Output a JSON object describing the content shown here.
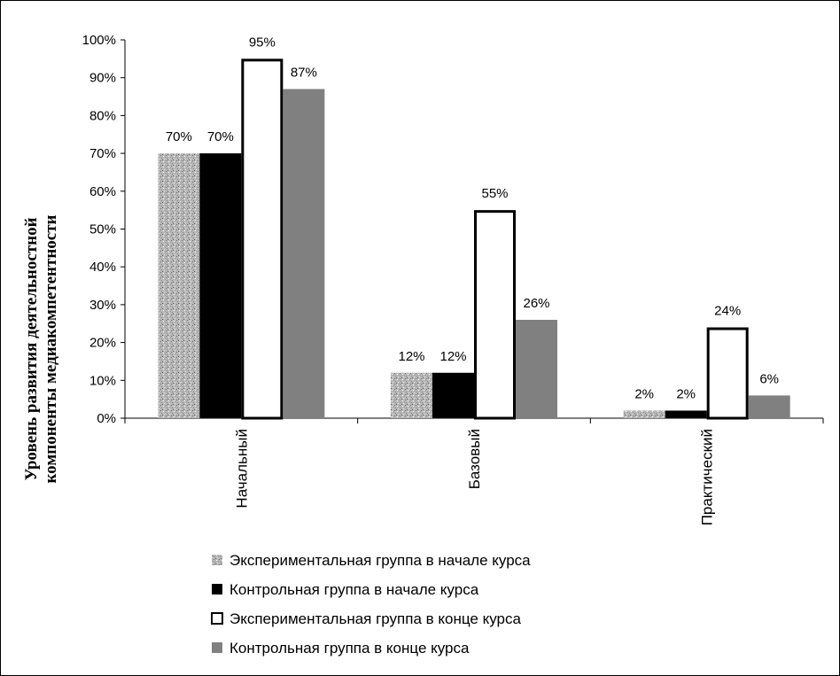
{
  "chart_data": {
    "type": "bar",
    "ylabel_lines": [
      "Уровень развития деятельностной",
      "компоненты медиакомпетентности"
    ],
    "xlabel": "",
    "ylim": [
      0,
      100
    ],
    "y_ticks": [
      "0%",
      "10%",
      "20%",
      "30%",
      "40%",
      "50%",
      "60%",
      "70%",
      "80%",
      "90%",
      "100%"
    ],
    "grid": false,
    "legend_position": "bottom",
    "categories": [
      "Начальный",
      "Базовый",
      "Практический"
    ],
    "series": [
      {
        "name": "Экспериментальная  группа в начале курса",
        "values": [
          70,
          12,
          2
        ],
        "labels": [
          "70%",
          "12%",
          "2%"
        ],
        "style": "speckled",
        "color": "#a9a9a9"
      },
      {
        "name": "Контрольная группа в начале курса",
        "values": [
          70,
          12,
          2
        ],
        "labels": [
          "70%",
          "12%",
          "2%"
        ],
        "style": "solid",
        "color": "#000000"
      },
      {
        "name": "Экспериментальная группа в конце курса",
        "values": [
          95,
          55,
          24
        ],
        "labels": [
          "95%",
          "55%",
          "24%"
        ],
        "style": "outline",
        "color": "#ffffff"
      },
      {
        "name": "Контрольная группа в конце курса",
        "values": [
          87,
          26,
          6
        ],
        "labels": [
          "87%",
          "26%",
          "6%"
        ],
        "style": "solid",
        "color": "#808080"
      }
    ]
  }
}
